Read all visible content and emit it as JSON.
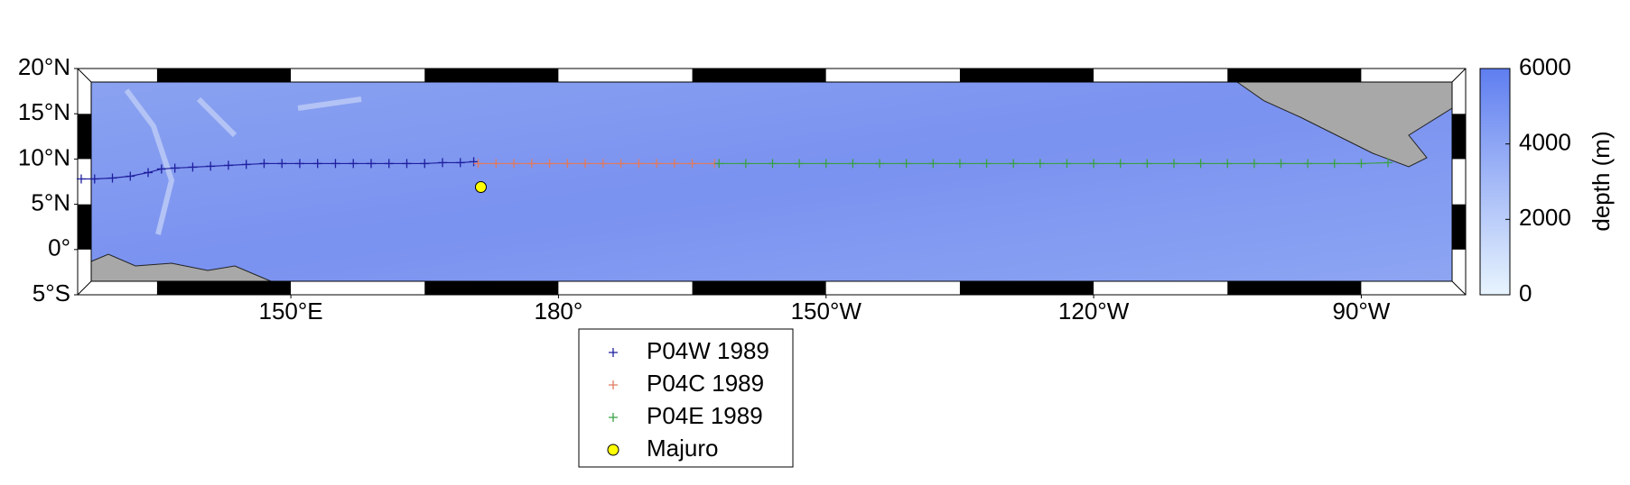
{
  "chart_data": {
    "type": "map",
    "xlim": [
      126.1,
      281.7
    ],
    "ylim": [
      -5,
      20
    ],
    "xticks": [
      {
        "value": 150,
        "label": "150°E"
      },
      {
        "value": 180,
        "label": "180°"
      },
      {
        "value": 210,
        "label": "150°W"
      },
      {
        "value": 240,
        "label": "120°W"
      },
      {
        "value": 270,
        "label": "90°W"
      }
    ],
    "yticks": [
      {
        "value": -5,
        "label": "5°S"
      },
      {
        "value": 0,
        "label": "0°"
      },
      {
        "value": 5,
        "label": "5°N"
      },
      {
        "value": 10,
        "label": "10°N"
      },
      {
        "value": 15,
        "label": "15°N"
      },
      {
        "value": 20,
        "label": "20°N"
      }
    ],
    "series": [
      {
        "name": "P04W 1989",
        "color": "#1f1f9e",
        "marker": "+",
        "x": [
          126.5,
          128,
          130,
          132,
          134,
          135.5,
          137,
          139,
          141,
          143,
          145,
          147,
          149,
          151,
          153,
          155,
          157,
          159,
          161,
          163,
          165,
          167,
          169,
          170.5
        ],
        "y": [
          7.8,
          7.8,
          7.9,
          8.1,
          8.5,
          8.9,
          9.0,
          9.1,
          9.2,
          9.3,
          9.4,
          9.5,
          9.5,
          9.5,
          9.5,
          9.5,
          9.5,
          9.5,
          9.5,
          9.5,
          9.5,
          9.6,
          9.6,
          9.7
        ]
      },
      {
        "name": "P04C 1989",
        "color": "#e07a5f",
        "marker": "+",
        "x": [
          171,
          173,
          175,
          177,
          179,
          181,
          183,
          185,
          187,
          189,
          191,
          193,
          195,
          197.5
        ],
        "y": [
          9.5,
          9.5,
          9.5,
          9.5,
          9.5,
          9.5,
          9.5,
          9.5,
          9.5,
          9.5,
          9.5,
          9.5,
          9.5,
          9.5
        ]
      },
      {
        "name": "P04E 1989",
        "color": "#3aa043",
        "marker": "+",
        "x": [
          198,
          201,
          204,
          207,
          210,
          213,
          216,
          219,
          222,
          225,
          228,
          231,
          234,
          237,
          240,
          243,
          246,
          249,
          252,
          255,
          258,
          261,
          264,
          267,
          270,
          273
        ],
        "y": [
          9.5,
          9.5,
          9.5,
          9.5,
          9.5,
          9.5,
          9.5,
          9.5,
          9.5,
          9.5,
          9.5,
          9.5,
          9.5,
          9.5,
          9.5,
          9.5,
          9.5,
          9.5,
          9.5,
          9.5,
          9.5,
          9.5,
          9.5,
          9.5,
          9.5,
          9.6
        ]
      }
    ],
    "points": [
      {
        "name": "Majuro",
        "color": "#ffff00",
        "x": 171.3,
        "y": 6.9
      }
    ],
    "colorbar": {
      "label": "depth (m)",
      "lim": [
        0,
        6000
      ],
      "ticks": [
        0,
        2000,
        4000,
        6000
      ],
      "colors": [
        "#e8f4fe",
        "#5f7ef0"
      ]
    }
  }
}
